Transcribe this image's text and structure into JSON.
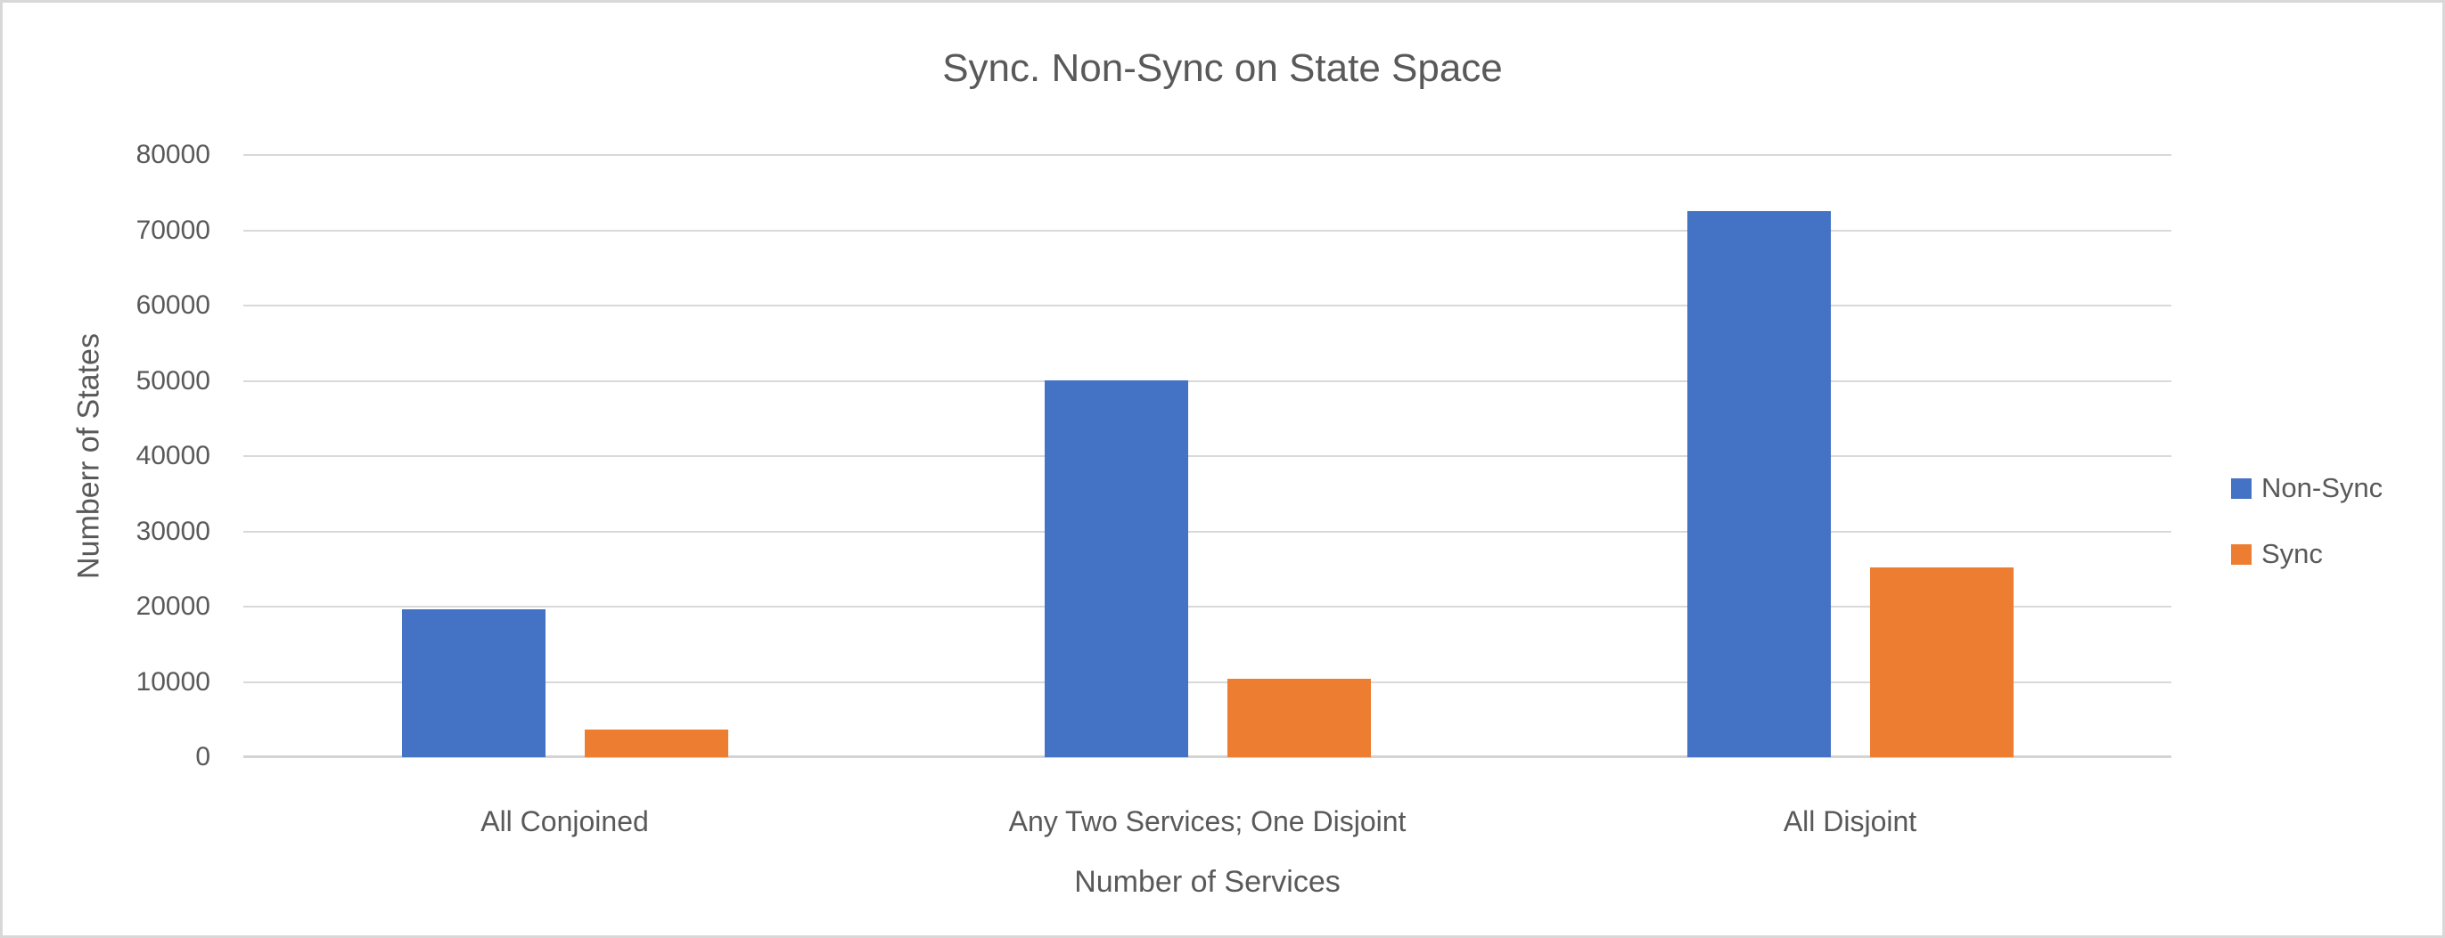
{
  "chart_data": {
    "type": "bar",
    "title": "Sync. Non-Sync on State Space",
    "xlabel": "Number of Services",
    "ylabel": "Numberr of States",
    "categories": [
      "All Conjoined",
      "Any Two Services; One Disjoint",
      "All Disjoint"
    ],
    "series": [
      {
        "name": "Non-Sync",
        "color": "#4472C4",
        "values": [
          19600,
          50000,
          72500
        ]
      },
      {
        "name": "Sync",
        "color": "#ED7D31",
        "values": [
          3700,
          10400,
          25200
        ]
      }
    ],
    "ylim": [
      0,
      80000
    ],
    "ytick_step": 10000,
    "yticks": [
      "80000",
      "70000",
      "60000",
      "50000",
      "40000",
      "30000",
      "20000",
      "10000",
      "0"
    ],
    "grid": true,
    "legend_position": "right",
    "legend": [
      "Non-Sync",
      "Sync"
    ]
  },
  "colors": {
    "non_sync": "#4472C4",
    "sync": "#ED7D31",
    "gridline": "#D9D9D9",
    "axis_line": "#D3D3D3",
    "text": "#595959",
    "canvas_border": "#D8D8D8",
    "background": "#FFFFFF"
  }
}
